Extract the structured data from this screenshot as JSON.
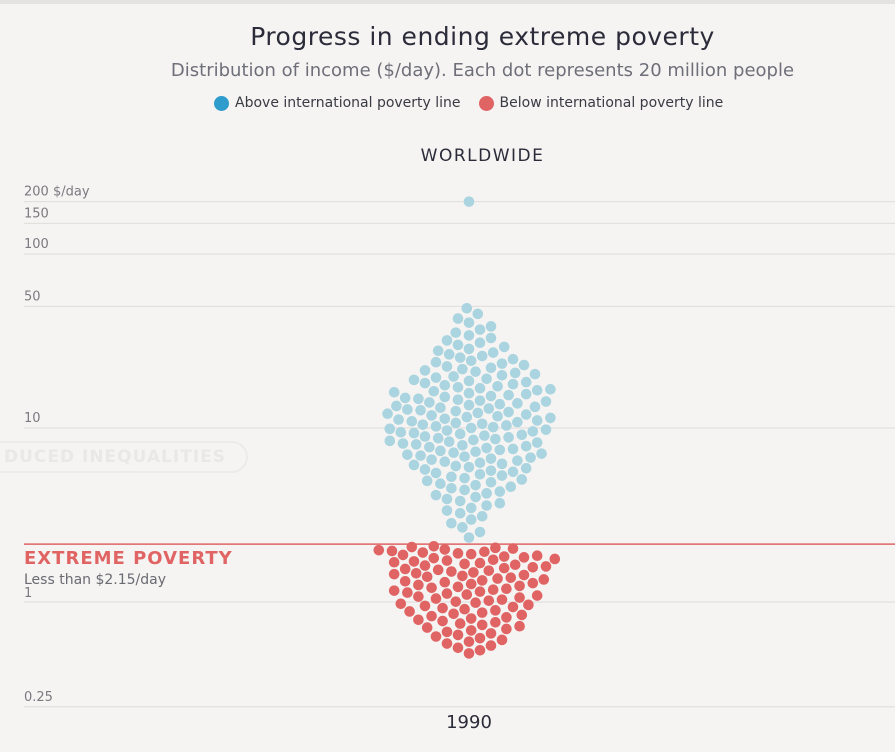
{
  "chart_data": {
    "type": "scatter",
    "title": "Progress in ending extreme poverty",
    "subtitle": "Distribution of income ($/day). Each dot represents 20 million people",
    "region": "WORLDWIDE",
    "category": "1990",
    "y_scale": "log",
    "ylim": [
      0.25,
      200
    ],
    "y_ticks": [
      {
        "value": 200,
        "label": "200 $/day"
      },
      {
        "value": 150,
        "label": "150"
      },
      {
        "value": 100,
        "label": "100"
      },
      {
        "value": 50,
        "label": "50"
      },
      {
        "value": 10,
        "label": "10"
      },
      {
        "value": 1,
        "label": "1"
      },
      {
        "value": 0.25,
        "label": "0.25"
      }
    ],
    "legend": [
      {
        "label": "Above international poverty line",
        "color": "#2e9ccc"
      },
      {
        "label": "Below international poverty line",
        "color": "#e06464"
      }
    ],
    "legend_position": "top",
    "grid": true,
    "poverty_line": {
      "value": 2.15,
      "title": "EXTREME POVERTY",
      "subtitle": "Less than $2.15/day",
      "color": "#e06464"
    },
    "dots": {
      "people_per_dot_millions": 20,
      "above_count": 165,
      "below_count": 100,
      "above_color": "#a9d4e0",
      "below_color": "#e06464",
      "max_value": 200,
      "min_value": 0.5
    }
  },
  "faded_button": "DUCED INEQUALITIES"
}
